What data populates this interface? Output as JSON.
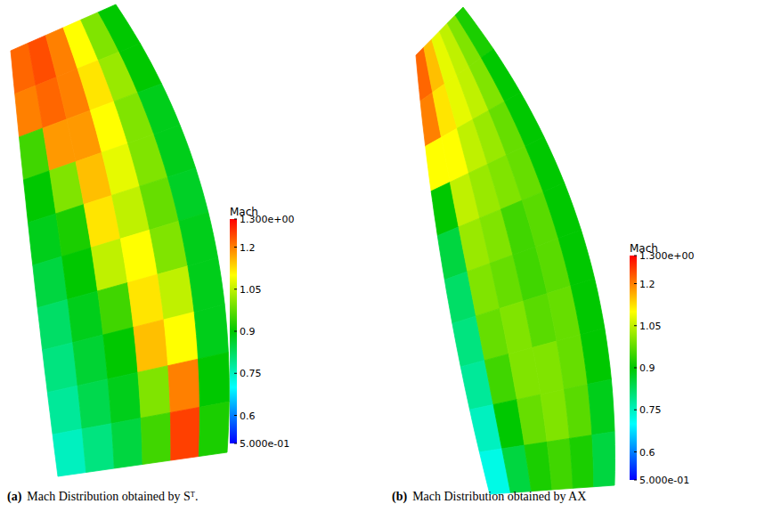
{
  "chart_data": [
    {
      "type": "contour",
      "caption_label": "(a)",
      "title": "Mach Distribution obtained by Sᵀ.",
      "colorbar_label": "Mach",
      "colorbar_range": [
        0.5,
        1.3
      ],
      "colorbar_ticks": [
        {
          "value": 1.3,
          "label": "1.300e+00"
        },
        1.2,
        1.05,
        0.9,
        0.75,
        0.6,
        {
          "value": 0.5,
          "label": "5.000e-01"
        }
      ],
      "cells": [
        [
          1.22,
          1.24,
          1.2,
          1.1,
          1.0,
          0.9
        ],
        [
          1.2,
          1.22,
          1.2,
          1.12,
          1.02,
          0.9
        ],
        [
          0.95,
          1.18,
          1.18,
          1.1,
          1.0,
          0.88
        ],
        [
          0.9,
          1.0,
          1.15,
          1.08,
          1.0,
          0.88
        ],
        [
          0.88,
          0.92,
          1.12,
          1.05,
          0.98,
          0.87
        ],
        [
          0.85,
          0.9,
          1.05,
          1.1,
          1.0,
          0.88
        ],
        [
          0.82,
          0.88,
          0.95,
          1.12,
          1.05,
          0.88
        ],
        [
          0.8,
          0.86,
          0.9,
          1.15,
          1.1,
          0.88
        ],
        [
          0.78,
          0.84,
          0.88,
          1.0,
          1.2,
          0.9
        ],
        [
          0.75,
          0.8,
          0.85,
          0.95,
          1.25,
          0.92
        ]
      ]
    },
    {
      "type": "contour",
      "caption_label": "(b)",
      "title": "Mach Distribution obtained by AX",
      "colorbar_label": "Mach",
      "colorbar_range": [
        0.5,
        1.3
      ],
      "colorbar_ticks": [
        {
          "value": 1.3,
          "label": "1.300e+00"
        },
        1.2,
        1.05,
        0.9,
        0.75,
        0.6,
        {
          "value": 0.5,
          "label": "5.000e-01"
        }
      ],
      "cells": [
        [
          1.22,
          1.15,
          1.08,
          1.05,
          1.0,
          0.92
        ],
        [
          1.2,
          1.12,
          1.08,
          1.05,
          1.0,
          0.9
        ],
        [
          1.1,
          1.1,
          1.05,
          1.02,
          0.98,
          0.9
        ],
        [
          0.9,
          1.05,
          1.02,
          1.0,
          0.98,
          0.9
        ],
        [
          0.85,
          1.02,
          1.0,
          0.95,
          0.97,
          0.9
        ],
        [
          0.82,
          1.0,
          0.98,
          0.95,
          0.97,
          0.9
        ],
        [
          0.8,
          0.98,
          1.0,
          0.97,
          0.98,
          0.9
        ],
        [
          0.78,
          0.95,
          1.0,
          1.0,
          0.98,
          0.9
        ],
        [
          0.75,
          0.9,
          0.98,
          1.0,
          0.97,
          0.88
        ],
        [
          0.72,
          0.85,
          0.92,
          0.95,
          0.92,
          0.85
        ]
      ]
    }
  ]
}
